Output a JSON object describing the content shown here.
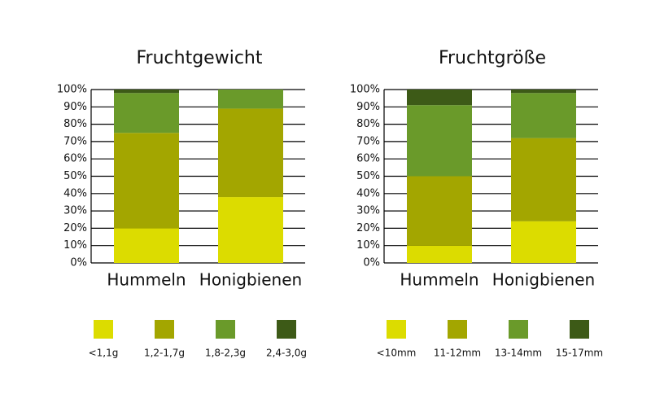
{
  "chart_data": [
    {
      "type": "stacked_bar",
      "title": "Fruchtgewicht",
      "categories": [
        "Hummeln",
        "Honigbienen"
      ],
      "series": [
        {
          "name": "<1,1g",
          "color": "#dcdc00",
          "values": [
            20,
            38
          ]
        },
        {
          "name": "1,2-1,7g",
          "color": "#a3a600",
          "values": [
            55,
            51
          ]
        },
        {
          "name": "1,8-2,3g",
          "color": "#6a9a2a",
          "values": [
            23,
            11
          ]
        },
        {
          "name": "2,4-3,0g",
          "color": "#3d5a17",
          "values": [
            2,
            0
          ]
        }
      ],
      "ylim": [
        0,
        100
      ],
      "yticks": [
        {
          "value": 0,
          "label": "0%"
        },
        {
          "value": 10,
          "label": "10%"
        },
        {
          "value": 20,
          "label": "20%"
        },
        {
          "value": 30,
          "label": "30%"
        },
        {
          "value": 40,
          "label": "40%"
        },
        {
          "value": 50,
          "label": "50%"
        },
        {
          "value": 60,
          "label": "60%"
        },
        {
          "value": 70,
          "label": "70%"
        },
        {
          "value": 80,
          "label": "80%"
        },
        {
          "value": 90,
          "label": "90%"
        },
        {
          "value": 100,
          "label": "100%"
        }
      ],
      "grid": true
    },
    {
      "type": "stacked_bar",
      "title": "Fruchtgröße",
      "categories": [
        "Hummeln",
        "Honigbienen"
      ],
      "series": [
        {
          "name": "<10mm",
          "color": "#dcdc00",
          "values": [
            10,
            24
          ]
        },
        {
          "name": "11-12mm",
          "color": "#a3a600",
          "values": [
            40,
            48
          ]
        },
        {
          "name": "13-14mm",
          "color": "#6a9a2a",
          "values": [
            41,
            26
          ]
        },
        {
          "name": "15-17mm",
          "color": "#3d5a17",
          "values": [
            9,
            2
          ]
        }
      ],
      "ylim": [
        0,
        100
      ],
      "yticks": [
        {
          "value": 0,
          "label": "0%"
        },
        {
          "value": 10,
          "label": "10%"
        },
        {
          "value": 20,
          "label": "20%"
        },
        {
          "value": 30,
          "label": "30%"
        },
        {
          "value": 40,
          "label": "40%"
        },
        {
          "value": 50,
          "label": "50%"
        },
        {
          "value": 60,
          "label": "60%"
        },
        {
          "value": 70,
          "label": "70%"
        },
        {
          "value": 80,
          "label": "80%"
        },
        {
          "value": 90,
          "label": "90%"
        },
        {
          "value": 100,
          "label": "100%"
        }
      ],
      "grid": true
    }
  ]
}
